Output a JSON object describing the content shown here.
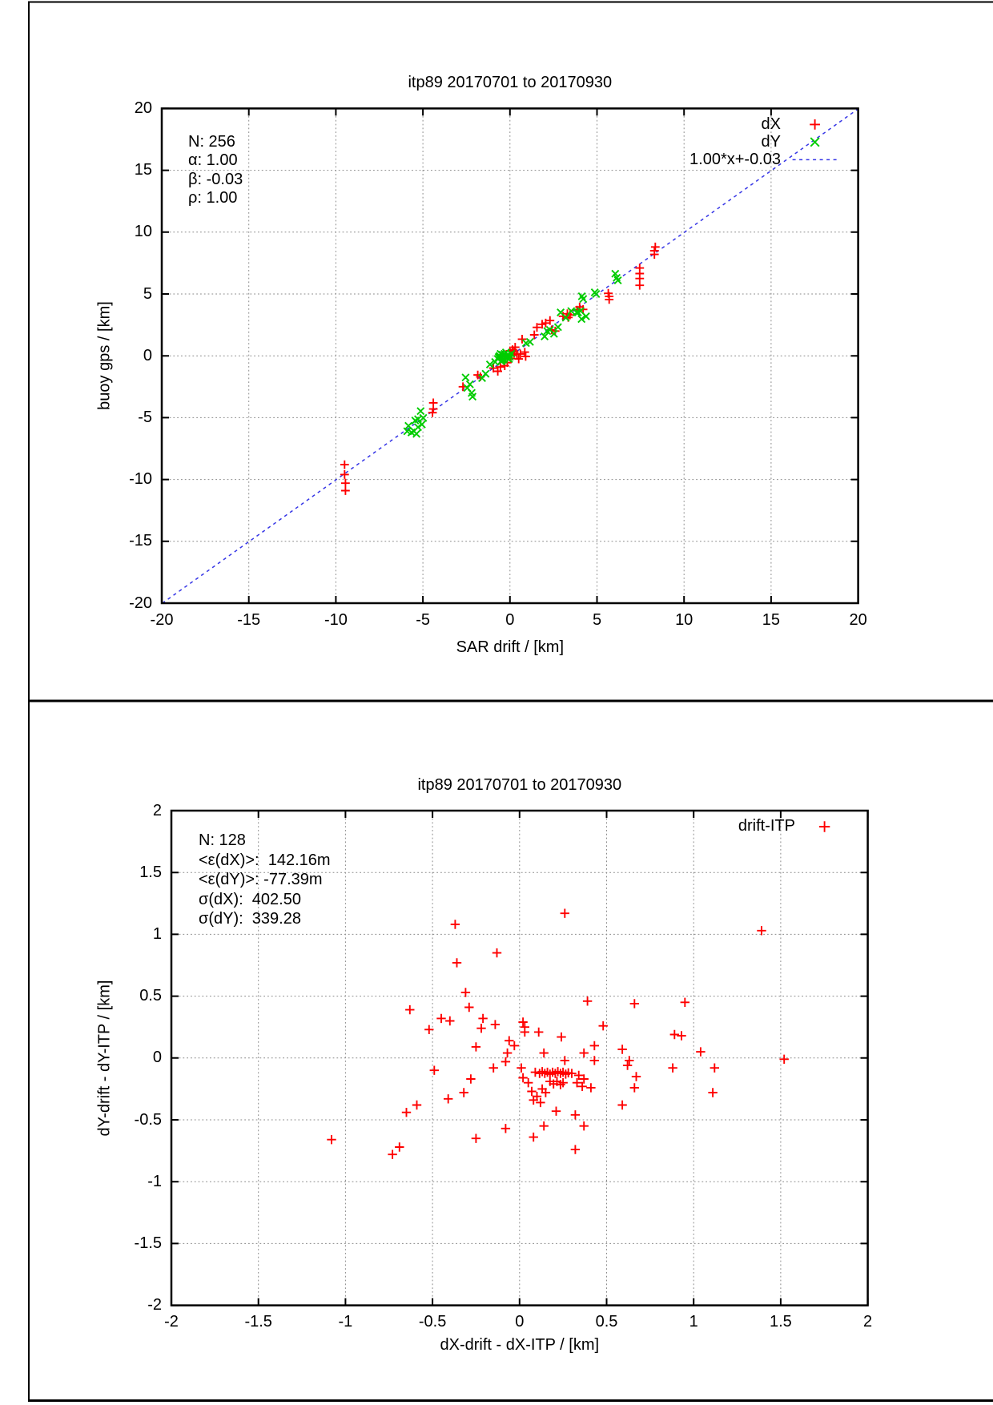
{
  "page": {
    "background": "#ffffff",
    "frame_color": "#000000"
  },
  "chart_data": [
    {
      "type": "scatter",
      "title": "itp89 20170701 to 20170930",
      "xlabel": "SAR drift / [km]",
      "ylabel": "buoy gps / [km]",
      "xlim": [
        -20,
        20
      ],
      "ylim": [
        -20,
        20
      ],
      "xticks": [
        -20,
        -15,
        -10,
        -5,
        0,
        5,
        10,
        15,
        20
      ],
      "yticks": [
        -20,
        -15,
        -10,
        -5,
        0,
        5,
        10,
        15,
        20
      ],
      "grid": true,
      "stats": [
        "N: 256",
        "α: 1.00",
        "β: -0.03",
        "ρ: 1.00"
      ],
      "legend_position": "top-right",
      "fit": {
        "label": "1.00*x+-0.03",
        "slope": 1.0,
        "intercept": -0.03,
        "color": "#3535e6",
        "style": "dashed"
      },
      "series": [
        {
          "name": "dX",
          "marker": "plus",
          "color": "#ff0000",
          "points": [
            [
              -9.5,
              -8.8
            ],
            [
              -9.5,
              -9.6
            ],
            [
              -9.45,
              -10.3
            ],
            [
              -9.45,
              -10.9
            ],
            [
              -4.4,
              -3.8
            ],
            [
              -4.4,
              -4.3
            ],
            [
              -4.45,
              -4.6
            ],
            [
              -2.7,
              -2.5
            ],
            [
              -1.85,
              -1.55
            ],
            [
              -1.7,
              -1.7
            ],
            [
              -0.95,
              -1.0
            ],
            [
              -0.7,
              -1.25
            ],
            [
              -0.55,
              -0.9
            ],
            [
              -0.3,
              -0.8
            ],
            [
              -0.15,
              -0.55
            ],
            [
              0.0,
              0.4
            ],
            [
              0.15,
              0.5
            ],
            [
              0.3,
              0.7
            ],
            [
              0.4,
              0.15
            ],
            [
              0.6,
              0.15
            ],
            [
              0.85,
              0.3
            ],
            [
              0.9,
              -0.05
            ],
            [
              0.1,
              0.05
            ],
            [
              0.25,
              0.3
            ],
            [
              0.5,
              -0.25
            ],
            [
              0.05,
              -0.2
            ],
            [
              0.7,
              1.35
            ],
            [
              1.4,
              1.7
            ],
            [
              1.55,
              2.3
            ],
            [
              1.85,
              2.55
            ],
            [
              2.05,
              2.65
            ],
            [
              2.3,
              2.85
            ],
            [
              2.4,
              2.1
            ],
            [
              2.6,
              2.0
            ],
            [
              3.05,
              3.2
            ],
            [
              3.3,
              3.4
            ],
            [
              3.45,
              3.3
            ],
            [
              3.35,
              3.1
            ],
            [
              3.85,
              3.7
            ],
            [
              4.0,
              3.95
            ],
            [
              4.2,
              3.75
            ],
            [
              5.65,
              5.05
            ],
            [
              5.7,
              4.8
            ],
            [
              5.7,
              4.55
            ],
            [
              7.45,
              7.1
            ],
            [
              7.45,
              6.65
            ],
            [
              7.45,
              6.25
            ],
            [
              7.45,
              5.7
            ],
            [
              8.35,
              8.8
            ],
            [
              8.3,
              8.5
            ],
            [
              8.3,
              8.2
            ]
          ]
        },
        {
          "name": "dY",
          "marker": "cross",
          "color": "#00cc00",
          "points": [
            [
              -5.83,
              -5.66
            ],
            [
              -5.9,
              -6.1
            ],
            [
              -5.66,
              -6.2
            ],
            [
              -5.51,
              -6.09
            ],
            [
              -5.37,
              -6.31
            ],
            [
              -5.28,
              -5.77
            ],
            [
              -5.44,
              -5.23
            ],
            [
              -5.28,
              -5.12
            ],
            [
              -5.06,
              -5.55
            ],
            [
              -4.98,
              -5.02
            ],
            [
              -5.13,
              -4.47
            ],
            [
              -2.55,
              -1.75
            ],
            [
              -2.45,
              -2.6
            ],
            [
              -2.3,
              -2.3
            ],
            [
              -2.2,
              -3.0
            ],
            [
              -2.15,
              -3.3
            ],
            [
              -1.6,
              -1.8
            ],
            [
              -1.4,
              -1.45
            ],
            [
              -1.15,
              -0.7
            ],
            [
              -0.85,
              -0.5
            ],
            [
              -0.62,
              -0.16
            ],
            [
              -0.54,
              0.16
            ],
            [
              -0.45,
              -0.35
            ],
            [
              -0.39,
              -0.05
            ],
            [
              -0.31,
              0.16
            ],
            [
              -0.23,
              0.27
            ],
            [
              -0.15,
              -0.18
            ],
            [
              -0.08,
              0.06
            ],
            [
              0.0,
              -0.08
            ],
            [
              0.07,
              0.16
            ],
            [
              -0.6,
              0.0
            ],
            [
              -0.5,
              -0.45
            ],
            [
              -0.35,
              -0.3
            ],
            [
              -0.7,
              -0.25
            ],
            [
              -0.42,
              0.1
            ],
            [
              -0.28,
              -0.08
            ],
            [
              -0.2,
              0.0
            ],
            [
              -0.05,
              -0.25
            ],
            [
              -0.65,
              -0.1
            ],
            [
              0.92,
              1.03
            ],
            [
              1.15,
              1.13
            ],
            [
              1.99,
              1.57
            ],
            [
              2.14,
              2.0
            ],
            [
              2.3,
              2.1
            ],
            [
              2.53,
              1.78
            ],
            [
              2.76,
              2.32
            ],
            [
              2.91,
              3.51
            ],
            [
              3.21,
              3.08
            ],
            [
              3.52,
              3.62
            ],
            [
              3.83,
              3.51
            ],
            [
              3.91,
              3.51
            ],
            [
              4.06,
              3.62
            ],
            [
              4.11,
              2.97
            ],
            [
              4.37,
              3.19
            ],
            [
              4.13,
              4.81
            ],
            [
              4.21,
              4.6
            ],
            [
              4.87,
              5.13
            ],
            [
              4.95,
              5.0
            ],
            [
              6.05,
              6.64
            ],
            [
              6.13,
              6.31
            ],
            [
              6.2,
              6.1
            ]
          ]
        }
      ]
    },
    {
      "type": "scatter",
      "title": "itp89 20170701 to 20170930",
      "xlabel": "dX-drift - dX-ITP / [km]",
      "ylabel": "dY-drift - dY-ITP / [km]",
      "xlim": [
        -2,
        2
      ],
      "ylim": [
        -2,
        2
      ],
      "xticks": [
        -2,
        -1.5,
        -1,
        -0.5,
        0,
        0.5,
        1,
        1.5,
        2
      ],
      "yticks": [
        -2,
        -1.5,
        -1,
        -0.5,
        0,
        0.5,
        1,
        1.5,
        2
      ],
      "grid": true,
      "stats": [
        "N: 128",
        "<ε(dX)>:  142.16m",
        "<ε(dY)>: -77.39m",
        "σ(dX):  402.50",
        "σ(dY):  339.28"
      ],
      "legend_position": "top-right",
      "series": [
        {
          "name": "drift-ITP",
          "marker": "plus",
          "color": "#ff0000",
          "points": [
            [
              -0.37,
              1.08
            ],
            [
              0.26,
              1.17
            ],
            [
              1.39,
              1.03
            ],
            [
              -0.36,
              0.77
            ],
            [
              -0.13,
              0.85
            ],
            [
              -0.31,
              0.53
            ],
            [
              -0.63,
              0.39
            ],
            [
              -0.29,
              0.41
            ],
            [
              -0.45,
              0.32
            ],
            [
              -0.4,
              0.3
            ],
            [
              -0.52,
              0.23
            ],
            [
              -0.21,
              0.32
            ],
            [
              -0.14,
              0.27
            ],
            [
              -0.22,
              0.24
            ],
            [
              0.39,
              0.46
            ],
            [
              0.48,
              0.26
            ],
            [
              0.66,
              0.44
            ],
            [
              0.95,
              0.45
            ],
            [
              0.02,
              0.29
            ],
            [
              0.03,
              0.25
            ],
            [
              0.03,
              0.21
            ],
            [
              0.11,
              0.21
            ],
            [
              0.89,
              0.19
            ],
            [
              0.93,
              0.18
            ],
            [
              -0.25,
              0.09
            ],
            [
              -0.06,
              0.14
            ],
            [
              -0.03,
              0.1
            ],
            [
              -0.07,
              0.04
            ],
            [
              0.14,
              0.04
            ],
            [
              0.24,
              0.17
            ],
            [
              0.26,
              -0.02
            ],
            [
              0.43,
              0.1
            ],
            [
              0.37,
              0.04
            ],
            [
              0.43,
              -0.02
            ],
            [
              -0.08,
              -0.03
            ],
            [
              -0.15,
              -0.08
            ],
            [
              -0.28,
              -0.17
            ],
            [
              -0.49,
              -0.1
            ],
            [
              0.59,
              0.07
            ],
            [
              0.63,
              -0.02
            ],
            [
              0.62,
              -0.06
            ],
            [
              0.67,
              -0.15
            ],
            [
              0.66,
              -0.24
            ],
            [
              0.59,
              -0.38
            ],
            [
              0.88,
              -0.08
            ],
            [
              1.04,
              0.05
            ],
            [
              1.12,
              -0.08
            ],
            [
              1.11,
              -0.28
            ],
            [
              1.52,
              -0.01
            ],
            [
              0.01,
              -0.08
            ],
            [
              0.02,
              -0.16
            ],
            [
              0.05,
              -0.2
            ],
            [
              0.07,
              -0.27
            ],
            [
              0.09,
              -0.115
            ],
            [
              0.115,
              -0.125
            ],
            [
              0.13,
              -0.11
            ],
            [
              0.145,
              -0.125
            ],
            [
              0.16,
              -0.115
            ],
            [
              0.175,
              -0.13
            ],
            [
              0.19,
              -0.115
            ],
            [
              0.205,
              -0.125
            ],
            [
              0.22,
              -0.11
            ],
            [
              0.235,
              -0.125
            ],
            [
              0.25,
              -0.115
            ],
            [
              0.265,
              -0.13
            ],
            [
              0.28,
              -0.12
            ],
            [
              0.3,
              -0.125
            ],
            [
              0.175,
              -0.19
            ],
            [
              0.195,
              -0.21
            ],
            [
              0.215,
              -0.19
            ],
            [
              0.235,
              -0.215
            ],
            [
              0.25,
              -0.2
            ],
            [
              0.13,
              -0.25
            ],
            [
              0.15,
              -0.28
            ],
            [
              0.1,
              -0.31
            ],
            [
              0.08,
              -0.34
            ],
            [
              0.12,
              -0.36
            ],
            [
              0.34,
              -0.14
            ],
            [
              0.37,
              -0.17
            ],
            [
              0.33,
              -0.2
            ],
            [
              0.36,
              -0.23
            ],
            [
              0.41,
              -0.24
            ],
            [
              0.21,
              -0.43
            ],
            [
              0.32,
              -0.46
            ],
            [
              0.37,
              -0.55
            ],
            [
              0.14,
              -0.55
            ],
            [
              -0.08,
              -0.57
            ],
            [
              0.08,
              -0.64
            ],
            [
              0.32,
              -0.74
            ],
            [
              -0.32,
              -0.28
            ],
            [
              -0.41,
              -0.33
            ],
            [
              -0.59,
              -0.38
            ],
            [
              -0.65,
              -0.44
            ],
            [
              -1.08,
              -0.66
            ],
            [
              -0.69,
              -0.72
            ],
            [
              -0.73,
              -0.78
            ],
            [
              -0.25,
              -0.65
            ]
          ]
        }
      ]
    }
  ]
}
